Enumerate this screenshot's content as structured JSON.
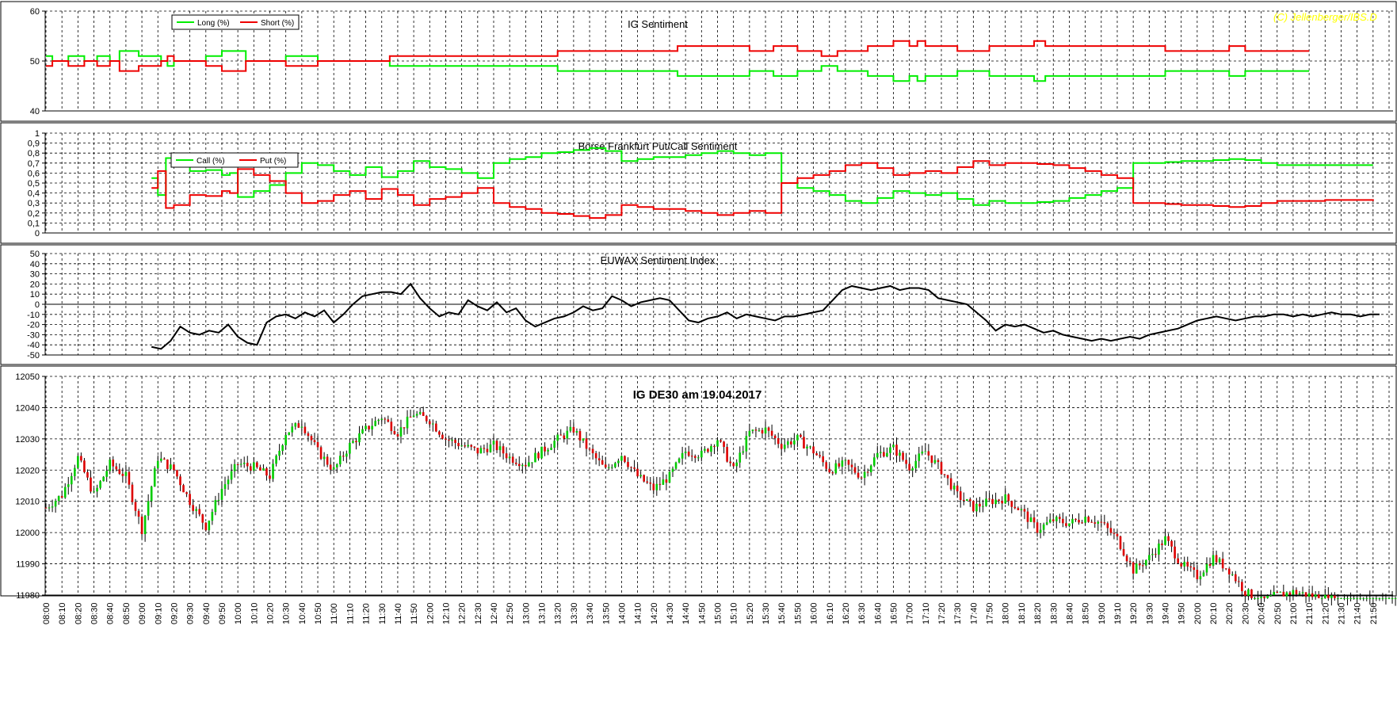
{
  "colors": {
    "green": "#00ee00",
    "red": "#ee0000",
    "black": "#000000",
    "up_candle": "#00cc00",
    "down_candle": "#dd0000",
    "watermark": "#ffff00"
  },
  "watermark": "(C) Jellenberger/IBS.D",
  "time_labels": [
    "08:00",
    "08:10",
    "08:20",
    "08:30",
    "08:40",
    "08:50",
    "09:00",
    "09:10",
    "09:20",
    "09:30",
    "09:40",
    "09:50",
    "10:00",
    "10:10",
    "10:20",
    "10:30",
    "10:40",
    "10:50",
    "11:00",
    "11:10",
    "11:20",
    "11:30",
    "11:40",
    "11:50",
    "12:00",
    "12:10",
    "12:20",
    "12:30",
    "12:40",
    "12:50",
    "13:00",
    "13:10",
    "13:20",
    "13:30",
    "13:40",
    "13:50",
    "14:00",
    "14:10",
    "14:20",
    "14:30",
    "14:40",
    "14:50",
    "15:00",
    "15:10",
    "15:20",
    "15:30",
    "15:40",
    "15:50",
    "16:00",
    "16:10",
    "16:20",
    "16:30",
    "16:40",
    "16:50",
    "17:00",
    "17:10",
    "17:20",
    "17:30",
    "17:40",
    "17:50",
    "18:00",
    "18:10",
    "18:20",
    "18:30",
    "18:40",
    "18:50",
    "19:00",
    "19:10",
    "19:20",
    "19:30",
    "19:40",
    "19:50",
    "20:00",
    "20:10",
    "20:20",
    "20:30",
    "20:40",
    "20:50",
    "21:00",
    "21:10",
    "21:20",
    "21:30",
    "21:40",
    "21:50"
  ],
  "chart_data": [
    {
      "type": "line",
      "title": "IG Sentiment",
      "ylim": [
        40,
        60
      ],
      "yticks": [
        "40",
        "50",
        "60"
      ],
      "grid": true,
      "legend_position": "top-left",
      "x_minutes": [
        0,
        4,
        8,
        14,
        18,
        24,
        28,
        32,
        38,
        40,
        46,
        52,
        58,
        62,
        72,
        76,
        80,
        82,
        88,
        96,
        100,
        104,
        110,
        118,
        125,
        132,
        140,
        150,
        160,
        170,
        180,
        200,
        215,
        240,
        260,
        320,
        370,
        385,
        395,
        438,
        440,
        450,
        455,
        460,
        470,
        485,
        495,
        505,
        514,
        520,
        525,
        530,
        540,
        545,
        550,
        562,
        565,
        570,
        575,
        590,
        595,
        605,
        611,
        618,
        625,
        630,
        640,
        660,
        680,
        695,
        700,
        710,
        720,
        740,
        750,
        790
      ],
      "series": [
        {
          "name": "Long (%)",
          "values": [
            51,
            50,
            50,
            51,
            51,
            50,
            50,
            51,
            51,
            50,
            52,
            52,
            51,
            51,
            50,
            49,
            50,
            50,
            50,
            50,
            51,
            51,
            52,
            52,
            50,
            50,
            50,
            51,
            51,
            50,
            50,
            50,
            49,
            49,
            49,
            48,
            48,
            48,
            47,
            47,
            48,
            48,
            47,
            47,
            48,
            49,
            48,
            48,
            47,
            47,
            47,
            46,
            47,
            46,
            47,
            47,
            47,
            48,
            48,
            47,
            47,
            47,
            47,
            46,
            47,
            47,
            47,
            47,
            47,
            47,
            48,
            48,
            48,
            47,
            48,
            48
          ]
        },
        {
          "name": "Short (%)",
          "values": [
            49,
            50,
            50,
            49,
            49,
            50,
            50,
            49,
            49,
            50,
            48,
            48,
            49,
            49,
            50,
            51,
            50,
            50,
            50,
            50,
            49,
            49,
            48,
            48,
            50,
            50,
            50,
            49,
            49,
            50,
            50,
            50,
            51,
            51,
            51,
            52,
            52,
            52,
            53,
            53,
            52,
            52,
            53,
            53,
            52,
            51,
            52,
            52,
            53,
            53,
            53,
            54,
            53,
            54,
            53,
            53,
            53,
            52,
            52,
            53,
            53,
            53,
            53,
            54,
            53,
            53,
            53,
            53,
            53,
            53,
            52,
            52,
            52,
            53,
            52,
            52
          ]
        }
      ]
    },
    {
      "type": "line",
      "title": "Börse Frankfurt Put/Call Sentiment",
      "ylim": [
        0,
        1
      ],
      "yticks": [
        "0",
        "0,1",
        "0,2",
        "0,3",
        "0,4",
        "0,5",
        "0,6",
        "0,7",
        "0,8",
        "0,9",
        "1"
      ],
      "grid": true,
      "legend_position": "top-left",
      "x_minutes": [
        66,
        70,
        75,
        80,
        90,
        100,
        110,
        115,
        120,
        130,
        140,
        150,
        160,
        170,
        180,
        190,
        200,
        210,
        220,
        230,
        240,
        250,
        260,
        270,
        280,
        290,
        300,
        310,
        320,
        330,
        340,
        350,
        360,
        370,
        380,
        390,
        400,
        410,
        420,
        430,
        440,
        450,
        460,
        470,
        480,
        490,
        500,
        510,
        520,
        530,
        540,
        550,
        560,
        570,
        580,
        590,
        600,
        610,
        620,
        630,
        640,
        650,
        660,
        670,
        680,
        690,
        700,
        710,
        720,
        730,
        740,
        750,
        760,
        770,
        780,
        790,
        800,
        810,
        820,
        830
      ],
      "series": [
        {
          "name": "Call (%)",
          "values": [
            0.55,
            0.38,
            0.75,
            0.72,
            0.62,
            0.63,
            0.58,
            0.6,
            0.36,
            0.42,
            0.48,
            0.6,
            0.7,
            0.68,
            0.62,
            0.58,
            0.66,
            0.56,
            0.62,
            0.72,
            0.66,
            0.64,
            0.6,
            0.55,
            0.7,
            0.74,
            0.76,
            0.8,
            0.81,
            0.83,
            0.85,
            0.82,
            0.72,
            0.74,
            0.76,
            0.76,
            0.78,
            0.8,
            0.82,
            0.8,
            0.78,
            0.8,
            0.5,
            0.45,
            0.42,
            0.38,
            0.32,
            0.3,
            0.35,
            0.42,
            0.4,
            0.38,
            0.4,
            0.34,
            0.28,
            0.32,
            0.3,
            0.3,
            0.31,
            0.32,
            0.35,
            0.38,
            0.42,
            0.45,
            0.7,
            0.7,
            0.71,
            0.72,
            0.72,
            0.73,
            0.74,
            0.73,
            0.7,
            0.68,
            0.68,
            0.68,
            0.68,
            0.68,
            0.68,
            0.68
          ]
        },
        {
          "name": "Put (%)",
          "values": [
            0.45,
            0.62,
            0.25,
            0.28,
            0.38,
            0.37,
            0.42,
            0.4,
            0.64,
            0.58,
            0.52,
            0.4,
            0.3,
            0.32,
            0.38,
            0.42,
            0.34,
            0.44,
            0.38,
            0.28,
            0.34,
            0.36,
            0.4,
            0.45,
            0.3,
            0.26,
            0.24,
            0.2,
            0.19,
            0.17,
            0.15,
            0.18,
            0.28,
            0.26,
            0.24,
            0.24,
            0.22,
            0.2,
            0.18,
            0.2,
            0.22,
            0.2,
            0.5,
            0.55,
            0.58,
            0.62,
            0.68,
            0.7,
            0.65,
            0.58,
            0.6,
            0.62,
            0.6,
            0.66,
            0.72,
            0.68,
            0.7,
            0.7,
            0.69,
            0.68,
            0.65,
            0.62,
            0.58,
            0.55,
            0.3,
            0.3,
            0.29,
            0.28,
            0.28,
            0.27,
            0.26,
            0.27,
            0.3,
            0.32,
            0.32,
            0.32,
            0.33,
            0.33,
            0.33,
            0.32
          ]
        }
      ]
    },
    {
      "type": "line",
      "title": "EUWAX  Sentiment Index",
      "ylim": [
        -50,
        50
      ],
      "yticks": [
        "-50",
        "-40",
        "-30",
        "-20",
        "-10",
        "0",
        "10",
        "20",
        "30",
        "40",
        "50"
      ],
      "grid": true,
      "x_minutes": [
        66,
        72,
        78,
        84,
        90,
        96,
        102,
        108,
        114,
        120,
        126,
        132,
        138,
        144,
        150,
        156,
        162,
        168,
        174,
        180,
        186,
        192,
        198,
        204,
        210,
        216,
        222,
        228,
        234,
        240,
        246,
        252,
        258,
        264,
        270,
        276,
        282,
        288,
        294,
        300,
        306,
        312,
        318,
        324,
        330,
        336,
        342,
        348,
        354,
        360,
        366,
        372,
        378,
        384,
        390,
        396,
        402,
        408,
        414,
        420,
        426,
        432,
        438,
        444,
        450,
        456,
        462,
        468,
        474,
        480,
        486,
        492,
        498,
        504,
        510,
        516,
        522,
        528,
        534,
        540,
        546,
        552,
        558,
        564,
        570,
        576,
        582,
        588,
        594,
        600,
        606,
        612,
        618,
        624,
        630,
        636,
        642,
        648,
        654,
        660,
        666,
        672,
        678,
        684,
        690,
        696,
        702,
        708,
        714,
        720,
        726,
        732,
        738,
        744,
        750,
        756,
        762,
        768,
        774,
        780,
        786,
        792,
        798,
        804,
        810,
        816,
        822,
        828,
        834
      ],
      "series": [
        {
          "name": "",
          "values": [
            -42,
            -44,
            -36,
            -22,
            -28,
            -30,
            -26,
            -28,
            -20,
            -32,
            -38,
            -40,
            -18,
            -12,
            -10,
            -14,
            -8,
            -12,
            -6,
            -18,
            -10,
            0,
            8,
            10,
            12,
            12,
            10,
            20,
            6,
            -4,
            -12,
            -8,
            -10,
            4,
            -2,
            -6,
            2,
            -8,
            -4,
            -16,
            -22,
            -18,
            -14,
            -12,
            -8,
            -2,
            -6,
            -4,
            8,
            4,
            -2,
            2,
            4,
            6,
            4,
            -6,
            -16,
            -18,
            -14,
            -12,
            -8,
            -14,
            -10,
            -12,
            -14,
            -16,
            -12,
            -12,
            -10,
            -8,
            -6,
            4,
            14,
            18,
            16,
            14,
            16,
            18,
            14,
            16,
            16,
            14,
            6,
            4,
            2,
            0,
            -8,
            -16,
            -26,
            -20,
            -22,
            -20,
            -24,
            -28,
            -26,
            -30,
            -32,
            -34,
            -36,
            -34,
            -36,
            -34,
            -32,
            -34,
            -30,
            -28,
            -26,
            -24,
            -20,
            -16,
            -14,
            -12,
            -14,
            -16,
            -14,
            -12,
            -12,
            -10,
            -10,
            -12,
            -10,
            -12,
            -10,
            -8,
            -10,
            -10,
            -12,
            -10,
            -10
          ]
        }
      ]
    },
    {
      "type": "candlestick",
      "title": "IG DE30 am 19.04.2017",
      "ylim": [
        11980,
        12050
      ],
      "yticks": [
        "11980",
        "11990",
        "12000",
        "12010",
        "12020",
        "12030",
        "12040",
        "12050"
      ],
      "grid": true,
      "candle_interval_minutes": 2,
      "x_minutes": [
        0,
        10,
        20,
        30,
        40,
        50,
        60,
        70,
        80,
        90,
        100,
        110,
        120,
        130,
        140,
        150,
        160,
        170,
        180,
        190,
        200,
        210,
        220,
        230,
        240,
        250,
        260,
        270,
        280,
        290,
        300,
        310,
        320,
        330,
        340,
        350,
        360,
        370,
        380,
        390,
        400,
        410,
        420,
        430,
        440,
        450,
        460,
        470,
        480,
        490,
        500,
        510,
        520,
        530,
        540,
        550,
        560,
        570,
        580,
        590,
        600,
        610,
        620,
        630,
        640,
        650,
        660,
        670,
        680,
        690,
        700,
        710,
        720,
        730,
        740,
        750,
        760,
        770,
        780,
        790,
        800,
        810,
        820,
        830,
        840,
        850,
        860,
        870,
        880,
        890
      ],
      "series": [
        {
          "name": "IG DE30",
          "values": [
            12008,
            12012,
            12024,
            12012,
            12022,
            12018,
            12001,
            12024,
            12020,
            12010,
            12002,
            12014,
            12022,
            12021,
            12018,
            12032,
            12035,
            12026,
            12020,
            12028,
            12033,
            12037,
            12032,
            12038,
            12036,
            12030,
            12028,
            12026,
            12028,
            12024,
            12022,
            12026,
            12030,
            12033,
            12026,
            12020,
            12025,
            12018,
            12014,
            12018,
            12026,
            12025,
            12030,
            12020,
            12032,
            12033,
            12028,
            12030,
            12026,
            12020,
            12022,
            12018,
            12025,
            12027,
            12021,
            12026,
            12020,
            12012,
            12008,
            12010,
            12011,
            12007,
            12001,
            12004,
            12003,
            12005,
            12003,
            11998,
            11988,
            11992,
            11998,
            11990,
            11986,
            11992,
            11988,
            11981,
            11978,
            11980,
            11981,
            11980,
            11979,
            11978,
            11978,
            11978,
            11978,
            11978,
            11978,
            11978,
            11978,
            11978
          ]
        }
      ]
    }
  ]
}
